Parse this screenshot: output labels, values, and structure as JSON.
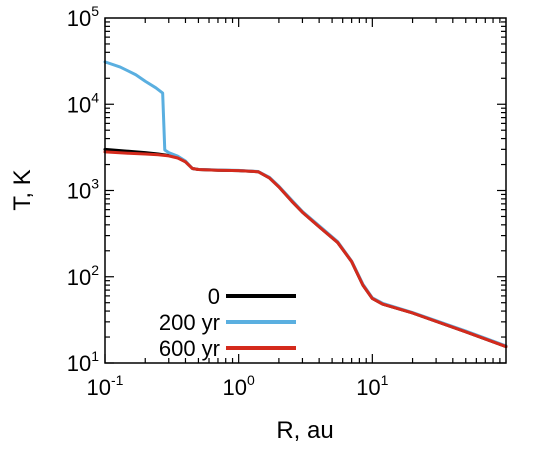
{
  "chart_data": {
    "type": "line",
    "xlabel": "R, au",
    "ylabel": "T, K",
    "xscale": "log",
    "yscale": "log",
    "xlim": [
      0.1,
      100
    ],
    "ylim": [
      10,
      100000
    ],
    "grid": false,
    "legend_position": "bottom-left",
    "x_ticks": [
      {
        "base": "10",
        "exp": "-1",
        "value": 0.1
      },
      {
        "base": "10",
        "exp": "0",
        "value": 1
      },
      {
        "base": "10",
        "exp": "1",
        "value": 10
      }
    ],
    "y_ticks": [
      {
        "base": "10",
        "exp": "1",
        "value": 10
      },
      {
        "base": "10",
        "exp": "2",
        "value": 100
      },
      {
        "base": "10",
        "exp": "3",
        "value": 1000
      },
      {
        "base": "10",
        "exp": "4",
        "value": 10000
      },
      {
        "base": "10",
        "exp": "5",
        "value": 100000
      }
    ],
    "series": [
      {
        "name": "0",
        "color": "#000000",
        "points": [
          [
            0.1,
            3000
          ],
          [
            0.15,
            2850
          ],
          [
            0.2,
            2750
          ],
          [
            0.25,
            2650
          ],
          [
            0.3,
            2550
          ],
          [
            0.35,
            2400
          ],
          [
            0.4,
            2150
          ],
          [
            0.45,
            1800
          ],
          [
            0.5,
            1750
          ],
          [
            0.7,
            1720
          ],
          [
            1.0,
            1700
          ],
          [
            1.4,
            1650
          ],
          [
            1.7,
            1400
          ],
          [
            2.0,
            1100
          ],
          [
            2.5,
            750
          ],
          [
            3.0,
            560
          ],
          [
            4.0,
            380
          ],
          [
            5.5,
            250
          ],
          [
            7.0,
            150
          ],
          [
            8.5,
            80
          ],
          [
            10.0,
            56
          ],
          [
            12.0,
            48
          ],
          [
            20.0,
            38
          ],
          [
            50.0,
            23
          ],
          [
            100.0,
            15.5
          ]
        ]
      },
      {
        "name": "200 yr",
        "color": "#5aafe0",
        "points": [
          [
            0.1,
            31000
          ],
          [
            0.13,
            27000
          ],
          [
            0.17,
            22000
          ],
          [
            0.2,
            18500
          ],
          [
            0.24,
            15500
          ],
          [
            0.27,
            13500
          ],
          [
            0.28,
            2950
          ],
          [
            0.3,
            2750
          ],
          [
            0.35,
            2500
          ],
          [
            0.4,
            2200
          ],
          [
            0.45,
            1800
          ],
          [
            0.5,
            1760
          ],
          [
            0.7,
            1730
          ],
          [
            1.0,
            1710
          ],
          [
            1.4,
            1660
          ],
          [
            1.7,
            1420
          ],
          [
            2.0,
            1120
          ],
          [
            2.5,
            770
          ],
          [
            3.0,
            570
          ],
          [
            4.0,
            390
          ],
          [
            5.5,
            255
          ],
          [
            7.0,
            152
          ],
          [
            8.5,
            82
          ],
          [
            10.0,
            57
          ],
          [
            12.0,
            49
          ],
          [
            20.0,
            38.5
          ],
          [
            50.0,
            23.5
          ],
          [
            100.0,
            15.8
          ]
        ]
      },
      {
        "name": "600 yr",
        "color": "#d42a1c",
        "points": [
          [
            0.1,
            2800
          ],
          [
            0.15,
            2700
          ],
          [
            0.2,
            2650
          ],
          [
            0.25,
            2600
          ],
          [
            0.3,
            2520
          ],
          [
            0.35,
            2380
          ],
          [
            0.4,
            2150
          ],
          [
            0.45,
            1800
          ],
          [
            0.5,
            1750
          ],
          [
            0.7,
            1720
          ],
          [
            1.0,
            1700
          ],
          [
            1.4,
            1650
          ],
          [
            1.7,
            1400
          ],
          [
            2.0,
            1100
          ],
          [
            2.5,
            750
          ],
          [
            3.0,
            560
          ],
          [
            4.0,
            380
          ],
          [
            5.5,
            250
          ],
          [
            7.0,
            150
          ],
          [
            8.5,
            80
          ],
          [
            10.0,
            56
          ],
          [
            12.0,
            48
          ],
          [
            20.0,
            38
          ],
          [
            50.0,
            23
          ],
          [
            100.0,
            15.5
          ]
        ]
      }
    ]
  }
}
